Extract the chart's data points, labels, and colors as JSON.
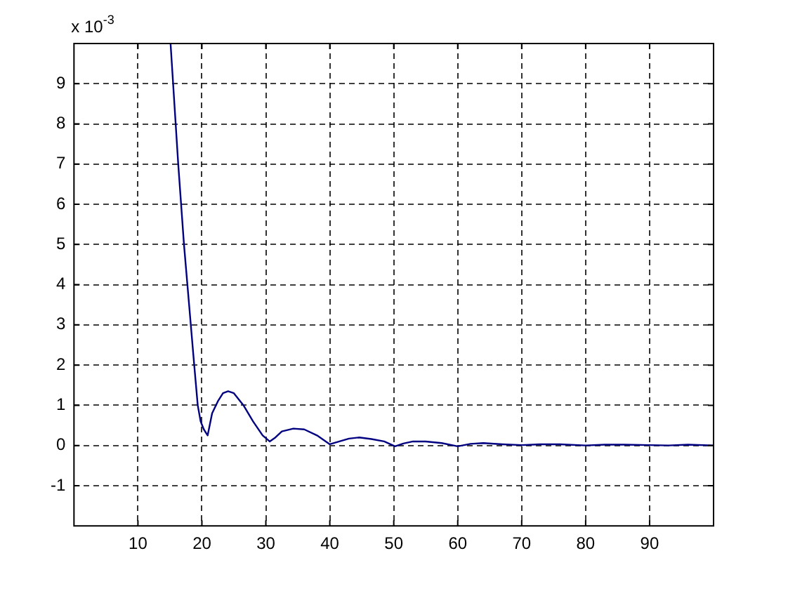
{
  "chart_data": {
    "type": "line",
    "x": [
      15.1,
      15.5,
      16.3,
      17.2,
      18,
      18.8,
      19.35,
      19.8,
      20.3,
      20.9,
      21.6,
      22.5,
      23.3,
      24.1,
      25,
      26.5,
      28,
      29.5,
      30.6,
      31.5,
      32.5,
      34.3,
      36,
      38,
      40,
      41.5,
      43,
      44.6,
      46.5,
      48.5,
      50.2,
      51.5,
      53,
      55,
      57.5,
      60,
      62,
      64,
      67,
      70,
      73,
      76,
      80,
      83,
      86,
      90,
      93,
      96,
      100
    ],
    "series": [
      {
        "color": "#000080",
        "values": [
          10,
          9,
          7,
          5,
          3.5,
          2,
          1,
          0.6,
          0.4,
          0.25,
          0.8,
          1.1,
          1.3,
          1.35,
          1.3,
          1,
          0.6,
          0.25,
          0.1,
          0.2,
          0.35,
          0.42,
          0.4,
          0.25,
          0.03,
          0.1,
          0.17,
          0.2,
          0.16,
          0.1,
          -0.02,
          0.05,
          0.1,
          0.1,
          0.06,
          -0.02,
          0.04,
          0.06,
          0.03,
          0.01,
          0.03,
          0.03,
          0,
          0.02,
          0.02,
          0.01,
          0,
          0.02,
          0
        ]
      }
    ],
    "xlim": [
      0,
      100
    ],
    "xticks": [
      10,
      20,
      30,
      40,
      50,
      60,
      70,
      80,
      90
    ],
    "ylim": [
      -2,
      10
    ],
    "yticks": [
      -1,
      0,
      1,
      2,
      3,
      4,
      5,
      6,
      7,
      8,
      9
    ],
    "annotations": [
      "x 10$^{-3}$"
    ],
    "grid": true,
    "legend": false,
    "marker": "none",
    "line_style": "solid"
  }
}
